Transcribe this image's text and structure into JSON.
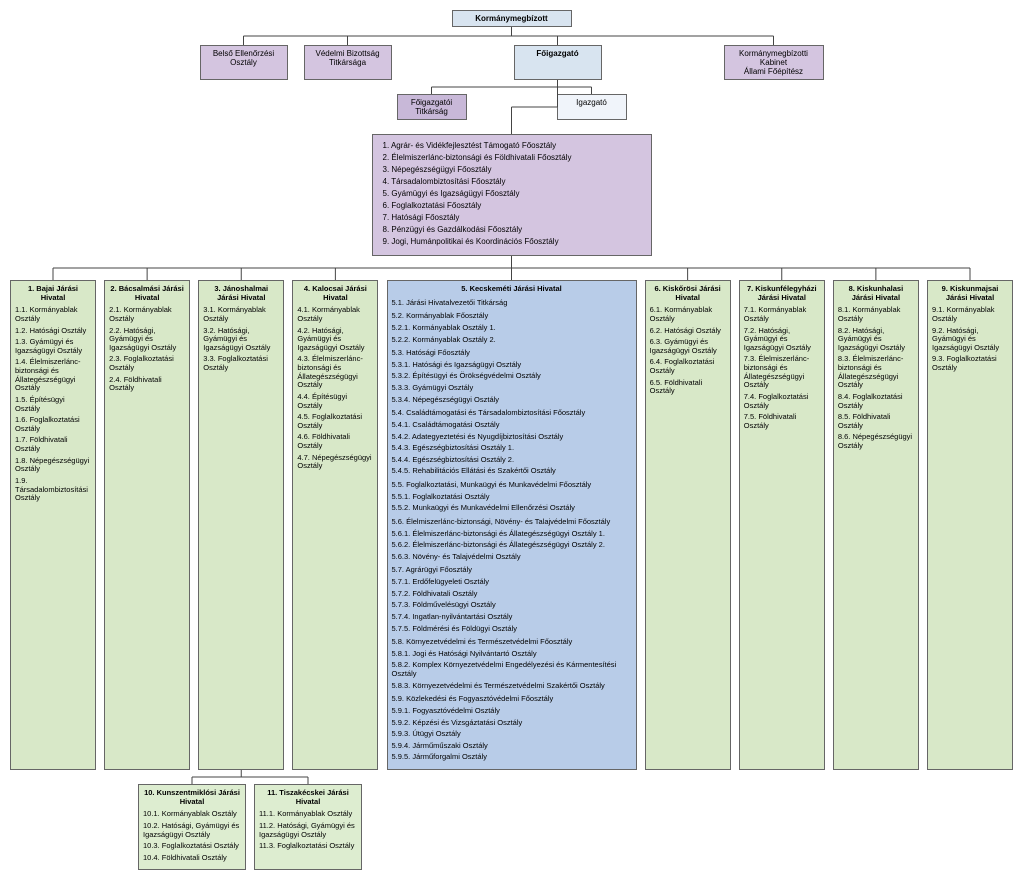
{
  "colors": {
    "purple": "#d4c5e0",
    "purple_light": "#c8b8d8",
    "blue_light": "#d8e4f0",
    "blue_white": "#f0f4fa",
    "blue_mid": "#b8cce8",
    "green": "#d8e8c8",
    "green_light": "#ddedd0",
    "line": "#444444",
    "bg": "#ffffff"
  },
  "font": {
    "family": "Arial",
    "base_size_pt": 6,
    "header_weight": "bold"
  },
  "top": {
    "kormanymegbizott": "Kormánymegbízott",
    "belso": "Belső Ellenőrzési\nOsztály",
    "vedelmi": "Védelmi Bizottság\nTitkársága",
    "foig": "Főigazgató",
    "kab": "Kormánymegbízotti\nKabinet\nÁllami Főépítész",
    "foig_titk": "Főigazgatói\nTitkárság",
    "igazgato": "Igazgató"
  },
  "main_depts": [
    "1. Agrár- és Vidékfejlesztést Támogató Főosztály",
    "2. Élelmiszerlánc-biztonsági és Földhivatali Főosztály",
    "3. Népegészségügyi Főosztály",
    "4. Társadalombiztosítási Főosztály",
    "5. Gyámügyi és Igazságügyi Főosztály",
    "6. Foglalkoztatási Főosztály",
    "7. Hatósági Főosztály",
    "8. Pénzügyi és Gazdálkodási Főosztály",
    "9. Jogi, Humánpolitikai és Koordinációs Főosztály"
  ],
  "districts": {
    "d1": {
      "title": "1. Bajai Járási Hivatal",
      "items": [
        "1.1. Kormányablak Osztály",
        "1.2. Hatósági Osztály",
        "1.3. Gyámügyi és Igazságügyi Osztály",
        "1.4. Élelmiszerlánc-biztonsági és Állategészségügyi Osztály",
        "1.5. Építésügyi Osztály",
        "1.6. Foglalkoztatási Osztály",
        "1.7. Földhivatali Osztály",
        "1.8. Népegészségügyi Osztály",
        "1.9. Társadalombiztosítási Osztály"
      ]
    },
    "d2": {
      "title": "2. Bácsalmási Járási Hivatal",
      "items": [
        "2.1. Kormányablak Osztály",
        "2.2. Hatósági, Gyámügyi és Igazságügyi Osztály",
        "2.3. Foglalkoztatási Osztály",
        "2.4. Földhivatali Osztály"
      ]
    },
    "d3": {
      "title": "3. Jánoshalmai Járási Hivatal",
      "items": [
        "3.1. Kormányablak Osztály",
        "3.2. Hatósági, Gyámügyi és Igazságügyi Osztály",
        "3.3. Foglalkoztatási Osztály"
      ]
    },
    "d4": {
      "title": "4. Kalocsai Járási Hivatal",
      "items": [
        "4.1. Kormányablak Osztály",
        "4.2. Hatósági, Gyámügyi és Igazságügyi Osztály",
        "4.3. Élelmiszerlánc-biztonsági és Állategészségügyi Osztály",
        "4.4. Építésügyi Osztály",
        "4.5. Foglalkoztatási Osztály",
        "4.6. Földhivatali Osztály",
        "4.7. Népegészségügyi Osztály"
      ]
    },
    "d5": {
      "title": "5. Kecskeméti Járási Hivatal",
      "items": [
        "5.1. Járási Hivatalvezetői Titkárság",
        "5.2. Kormányablak Főosztály",
        "5.2.1. Kormányablak Osztály 1.",
        "5.2.2. Kormányablak Osztály 2.",
        "5.3. Hatósági Főosztály",
        "5.3.1. Hatósági és Igazságügyi Osztály",
        "5.3.2. Építésügyi és Örökségvédelmi Osztály",
        "5.3.3. Gyámügyi Osztály",
        "5.3.4. Népegészségügyi Osztály",
        "5.4. Családtámogatási és Társadalombiztosítási Főosztály",
        "5.4.1. Családtámogatási Osztály",
        "5.4.2. Adategyeztetési és Nyugdíjbiztosítási Osztály",
        "5.4.3. Egészségbiztosítási Osztály 1.",
        "5.4.4. Egészségbiztosítási Osztály 2.",
        "5.4.5. Rehabilitációs Ellátási és Szakértői Osztály",
        "5.5. Foglalkoztatási, Munkaügyi és Munkavédelmi Főosztály",
        "5.5.1. Foglalkoztatási Osztály",
        "5.5.2. Munkaügyi és Munkavédelmi Ellenőrzési Osztály",
        "5.6. Élelmiszerlánc-biztonsági, Növény- és Talajvédelmi Főosztály",
        "5.6.1. Élelmiszerlánc-biztonsági és Állategészségügyi Osztály 1.",
        "5.6.2. Élelmiszerlánc-biztonsági és Állategészségügyi Osztály 2.",
        "5.6.3. Növény- és Talajvédelmi Osztály",
        "5.7. Agrárügyi Főosztály",
        "5.7.1. Erdőfelügyeleti Osztály",
        "5.7.2. Földhivatali Osztály",
        "5.7.3. Földművelésügyi Osztály",
        "5.7.4. Ingatlan-nyilvántartási Osztály",
        "5.7.5. Földmérési és Földügyi Osztály",
        "5.8. Környezetvédelmi és Természetvédelmi Főosztály",
        "5.8.1. Jogi és Hatósági Nyilvántartó Osztály",
        "5.8.2. Komplex Környezetvédelmi Engedélyezési és Kármentesítési Osztály",
        "5.8.3. Környezetvédelmi és Természetvédelmi Szakértői Osztály",
        "5.9. Közlekedési és Fogyasztóvédelmi Főosztály",
        "5.9.1. Fogyasztóvédelmi Osztály",
        "5.9.2. Képzési és Vizsgáztatási Osztály",
        "5.9.3. Útügyi Osztály",
        "5.9.4. Járműműszaki Osztály",
        "5.9.5. Járműforgalmi Osztály"
      ]
    },
    "d6": {
      "title": "6. Kiskőrösi Járási Hivatal",
      "items": [
        "6.1. Kormányablak Osztály",
        "6.2. Hatósági Osztály",
        "6.3. Gyámügyi és Igazságügyi Osztály",
        "6.4. Foglalkoztatási Osztály",
        "6.5. Földhivatali Osztály"
      ]
    },
    "d7": {
      "title": "7. Kiskunfélegyházi Járási Hivatal",
      "items": [
        "7.1. Kormányablak Osztály",
        "7.2. Hatósági, Gyámügyi és Igazságügyi Osztály",
        "7.3. Élelmiszerlánc-biztonsági és Állategészségügyi Osztály",
        "7.4. Foglalkoztatási Osztály",
        "7.5. Földhivatali Osztály"
      ]
    },
    "d8": {
      "title": "8. Kiskunhalasi Járási Hivatal",
      "items": [
        "8.1. Kormányablak Osztály",
        "8.2. Hatósági, Gyámügyi és Igazságügyi Osztály",
        "8.3. Élelmiszerlánc-biztonsági és Állategészségügyi Osztály",
        "8.4. Foglalkoztatási Osztály",
        "8.5. Földhivatali Osztály",
        "8.6. Népegészségügyi Osztály"
      ]
    },
    "d9": {
      "title": "9. Kiskunmajsai Járási Hivatal",
      "items": [
        "9.1. Kormányablak Osztály",
        "9.2. Hatósági, Gyámügyi és Igazságügyi Osztály",
        "9.3. Foglalkoztatási Osztály"
      ]
    },
    "d10": {
      "title": "10. Kunszentmiklósi Járási Hivatal",
      "items": [
        "10.1. Kormányablak Osztály",
        "10.2. Hatósági, Gyámügyi és Igazságügyi Osztály",
        "10.3. Foglalkoztatási Osztály",
        "10.4. Földhivatali Osztály"
      ]
    },
    "d11": {
      "title": "11. Tiszakécskei Járási Hivatal",
      "items": [
        "11.1. Kormányablak Osztály",
        "11.2. Hatósági, Gyámügyi és Igazságügyi Osztály",
        "11.3. Foglalkoztatási Osztály"
      ]
    }
  }
}
